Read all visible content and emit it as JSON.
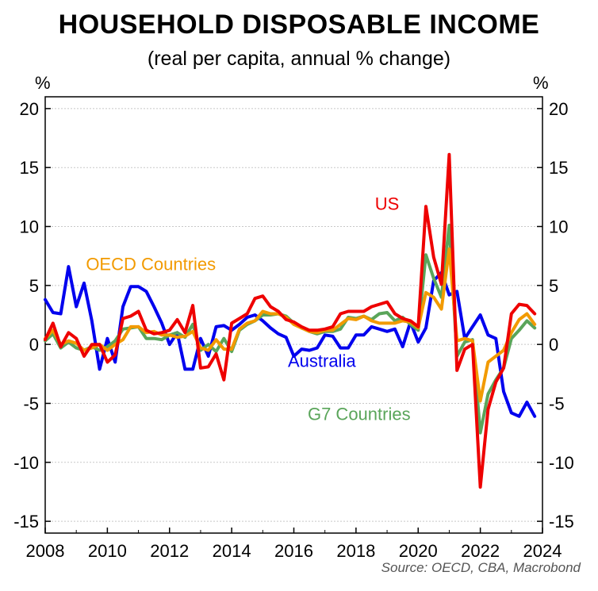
{
  "chart_data": {
    "type": "line",
    "title": "HOUSEHOLD DISPOSABLE INCOME",
    "subtitle": "(real per capita, annual % change)",
    "ylabel_left": "%",
    "ylabel_right": "%",
    "source": "Source: OECD, CBA, Macrobond",
    "xlim": [
      2008,
      2024
    ],
    "ylim": [
      -16,
      21
    ],
    "xticks": [
      "2008",
      "2010",
      "2012",
      "2014",
      "2016",
      "2018",
      "2020",
      "2022",
      "2024"
    ],
    "yticks": [
      "20",
      "15",
      "10",
      "5",
      "0",
      "-5",
      "-10",
      "-15"
    ],
    "grid": true,
    "x": [
      2008.0,
      2008.25,
      2008.5,
      2008.75,
      2009.0,
      2009.25,
      2009.5,
      2009.75,
      2010.0,
      2010.25,
      2010.5,
      2010.75,
      2011.0,
      2011.25,
      2011.5,
      2011.75,
      2012.0,
      2012.25,
      2012.5,
      2012.75,
      2013.0,
      2013.25,
      2013.5,
      2013.75,
      2014.0,
      2014.25,
      2014.5,
      2014.75,
      2015.0,
      2015.25,
      2015.5,
      2015.75,
      2016.0,
      2016.25,
      2016.5,
      2016.75,
      2017.0,
      2017.25,
      2017.5,
      2017.75,
      2018.0,
      2018.25,
      2018.5,
      2018.75,
      2019.0,
      2019.25,
      2019.5,
      2019.75,
      2020.0,
      2020.25,
      2020.5,
      2020.75,
      2021.0,
      2021.25,
      2021.5,
      2021.75,
      2022.0,
      2022.25,
      2022.5,
      2022.75,
      2023.0,
      2023.25,
      2023.5,
      2023.75
    ],
    "series": [
      {
        "name": "Australia",
        "color": "#0000ee",
        "label_at": [
          2016.9,
          -1.9
        ],
        "values": [
          3.8,
          2.7,
          2.6,
          6.6,
          3.2,
          5.2,
          2.0,
          -2.1,
          0.5,
          -1.5,
          3.2,
          4.9,
          4.9,
          4.5,
          3.2,
          1.8,
          0.0,
          1.0,
          -2.1,
          -2.1,
          0.5,
          -1.0,
          1.5,
          1.6,
          1.2,
          1.7,
          2.3,
          2.5,
          2.0,
          1.4,
          0.9,
          0.6,
          -1.0,
          -0.4,
          -0.5,
          -0.3,
          0.8,
          0.7,
          -0.3,
          -0.3,
          0.8,
          0.8,
          1.5,
          1.3,
          1.1,
          1.3,
          -0.2,
          1.9,
          0.2,
          1.4,
          5.4,
          6.1,
          4.2,
          4.5,
          0.5,
          1.5,
          2.5,
          0.8,
          0.5,
          -4.0,
          -5.8,
          -6.1,
          -4.9,
          -6.1
        ]
      },
      {
        "name": "G7 Countries",
        "color": "#5aa55a",
        "label_at": [
          2018.1,
          -6.4
        ],
        "values": [
          0.3,
          0.9,
          -0.3,
          0.2,
          -0.3,
          -0.5,
          -0.2,
          -0.5,
          -0.2,
          0.3,
          1.3,
          1.4,
          1.5,
          0.5,
          0.5,
          0.4,
          0.8,
          1.0,
          0.6,
          1.7,
          -0.5,
          0.0,
          -0.6,
          0.5,
          -0.6,
          1.2,
          1.7,
          2.0,
          2.5,
          2.5,
          2.6,
          2.4,
          1.8,
          1.4,
          1.1,
          0.9,
          1.1,
          1.1,
          1.3,
          2.3,
          2.2,
          2.4,
          2.1,
          2.6,
          2.7,
          2.0,
          2.3,
          1.7,
          1.2,
          7.6,
          5.6,
          4.0,
          10.1,
          -1.0,
          0.2,
          0.4,
          -7.5,
          -4.2,
          -3.0,
          -2.0,
          0.5,
          1.2,
          2.0,
          1.4
        ]
      },
      {
        "name": "OECD Countries",
        "color": "#f29a00",
        "label_at": [
          2011.4,
          6.3
        ],
        "values": [
          0.5,
          1.2,
          0.0,
          0.3,
          0.1,
          -0.5,
          -0.3,
          0.0,
          -0.5,
          0.0,
          0.4,
          1.5,
          1.5,
          1.0,
          1.1,
          0.8,
          0.8,
          0.6,
          0.7,
          1.1,
          -0.3,
          -0.5,
          0.4,
          -0.4,
          -0.4,
          1.3,
          1.8,
          2.0,
          2.8,
          2.6,
          2.6,
          2.3,
          1.7,
          1.4,
          1.1,
          1.0,
          1.2,
          1.2,
          1.7,
          2.2,
          2.1,
          2.4,
          2.0,
          1.8,
          1.8,
          1.8,
          2.0,
          1.9,
          1.4,
          4.4,
          4.0,
          3.0,
          8.1,
          0.3,
          0.5,
          0.3,
          -4.8,
          -1.5,
          -1.0,
          -0.5,
          1.0,
          2.1,
          2.6,
          1.7
        ]
      },
      {
        "name": "US",
        "color": "#ee0000",
        "label_at": [
          2019.0,
          11.4
        ],
        "values": [
          0.4,
          1.8,
          -0.2,
          1.0,
          0.5,
          -1.0,
          0.0,
          0.0,
          -1.5,
          -0.9,
          2.2,
          2.4,
          2.8,
          1.2,
          0.9,
          1.0,
          1.2,
          2.1,
          1.0,
          3.3,
          -2.0,
          -1.9,
          -0.8,
          -3.0,
          1.8,
          2.2,
          2.6,
          3.9,
          4.1,
          3.2,
          2.8,
          2.1,
          1.9,
          1.5,
          1.2,
          1.2,
          1.3,
          1.5,
          2.6,
          2.8,
          2.8,
          2.8,
          3.2,
          3.4,
          3.6,
          2.6,
          2.2,
          2.0,
          1.5,
          11.7,
          7.4,
          5.1,
          16.1,
          -2.2,
          -0.4,
          0.0,
          -12.1,
          -5.5,
          -3.2,
          -2.0,
          2.6,
          3.4,
          3.3,
          2.6
        ]
      }
    ]
  }
}
